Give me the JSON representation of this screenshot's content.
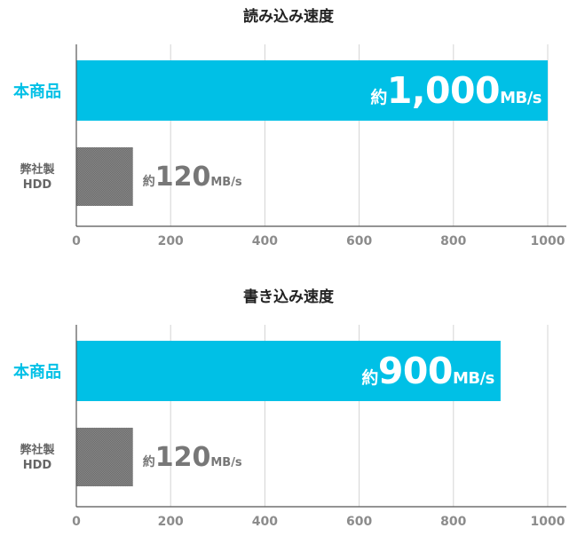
{
  "colors": {
    "highlight": "#00c0e6",
    "comparison": "#7a7a7a",
    "grid": "#d4d4d4",
    "axis": "#555555",
    "tick_text": "#8c8c8c",
    "title_text": "#222222",
    "sub_label_text": "#666666"
  },
  "chart_data": [
    {
      "type": "bar",
      "orientation": "horizontal",
      "title": "読み込み速度",
      "xlim": [
        0,
        1000
      ],
      "xticks": [
        0,
        200,
        400,
        600,
        800,
        1000
      ],
      "grid": true,
      "categories": [
        {
          "label": "本商品",
          "style": "highlight"
        },
        {
          "label_lines": [
            "弊社製",
            "HDD"
          ],
          "style": "comparison"
        }
      ],
      "values": [
        1000,
        120
      ],
      "value_labels": [
        {
          "prefix": "約",
          "number": "1,000",
          "unit": "MB/s"
        },
        {
          "prefix": "約",
          "number": "120",
          "unit": "MB/s"
        }
      ]
    },
    {
      "type": "bar",
      "orientation": "horizontal",
      "title": "書き込み速度",
      "xlim": [
        0,
        1000
      ],
      "xticks": [
        0,
        200,
        400,
        600,
        800,
        1000
      ],
      "grid": true,
      "categories": [
        {
          "label": "本商品",
          "style": "highlight"
        },
        {
          "label_lines": [
            "弊社製",
            "HDD"
          ],
          "style": "comparison"
        }
      ],
      "values": [
        900,
        120
      ],
      "value_labels": [
        {
          "prefix": "約",
          "number": "900",
          "unit": "MB/s"
        },
        {
          "prefix": "約",
          "number": "120",
          "unit": "MB/s"
        }
      ]
    }
  ]
}
